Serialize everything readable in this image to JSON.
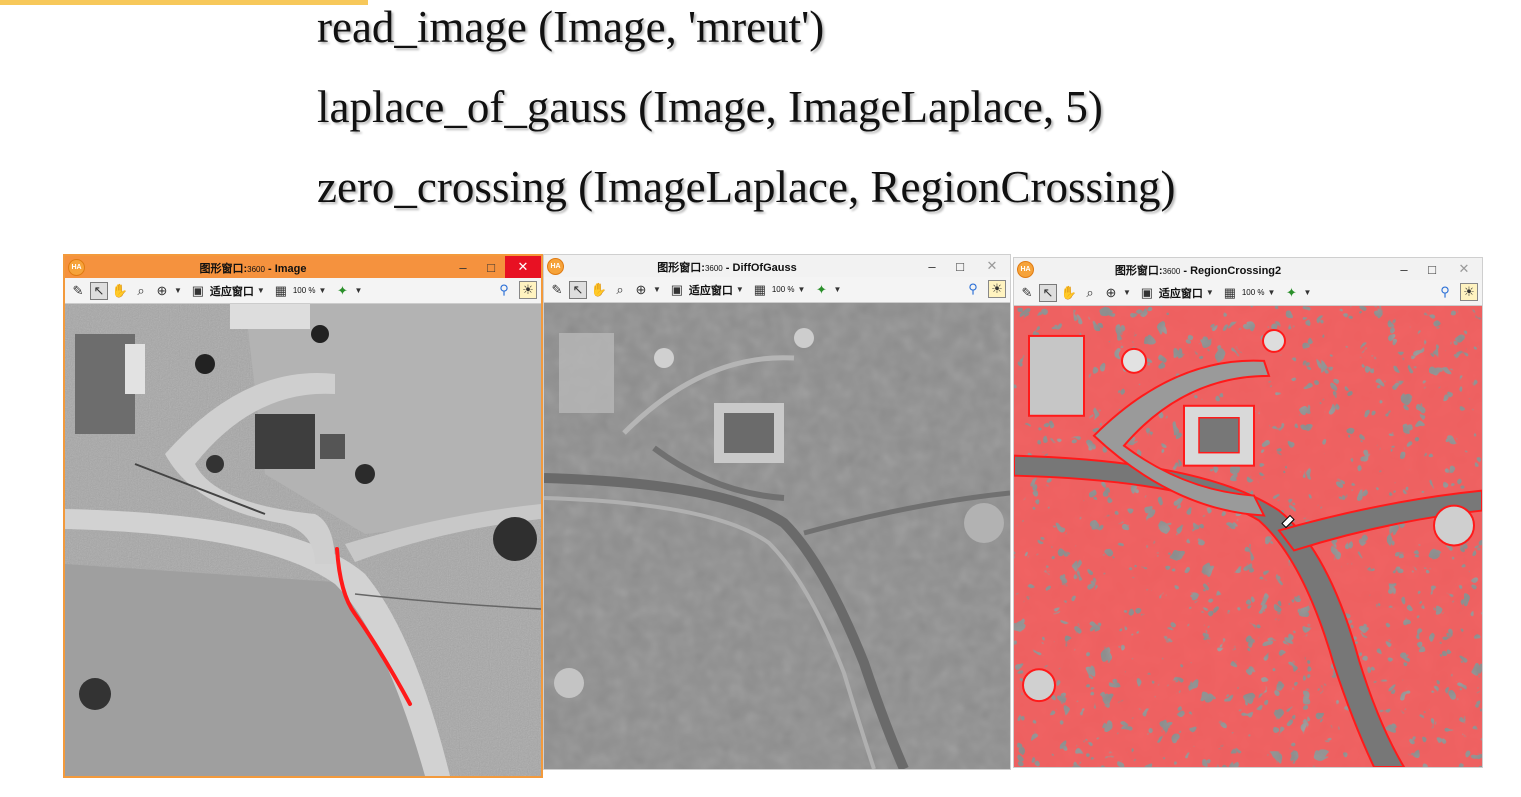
{
  "code": {
    "line1": "read_image (Image, 'mreut')",
    "line2": "laplace_of_gauss (Image, ImageLaplace, 5)",
    "line3": "zero_crossing (ImageLaplace, RegionCrossing)"
  },
  "windows": [
    {
      "title_prefix": "图形窗口:",
      "title_id": "3600",
      "title_sep": " - ",
      "title_name": "Image",
      "active": true
    },
    {
      "title_prefix": "图形窗口:",
      "title_id": "3600",
      "title_sep": " - ",
      "title_name": "DiffOfGauss",
      "active": false
    },
    {
      "title_prefix": "图形窗口:",
      "title_id": "3600",
      "title_sep": " - ",
      "title_name": "RegionCrossing2",
      "active": false
    }
  ],
  "toolbar": {
    "fit_label": "适应窗口",
    "zoom_label": "100 %"
  },
  "controls": {
    "minimize": "–",
    "maximize": "□",
    "close": "✕"
  },
  "app_badge": "HA",
  "colors": {
    "active_title": "#f5923e",
    "close_active": "#e81123",
    "region": "#ff1a1a",
    "accent": "#f7c85a"
  },
  "icons": [
    "draw-icon",
    "pointer-icon",
    "pan-hand-icon",
    "zoom-icon",
    "zoom-plus-icon",
    "fit-window-icon",
    "zoom-level-icon",
    "color-palette-icon",
    "inspect-icon",
    "light-icon"
  ]
}
